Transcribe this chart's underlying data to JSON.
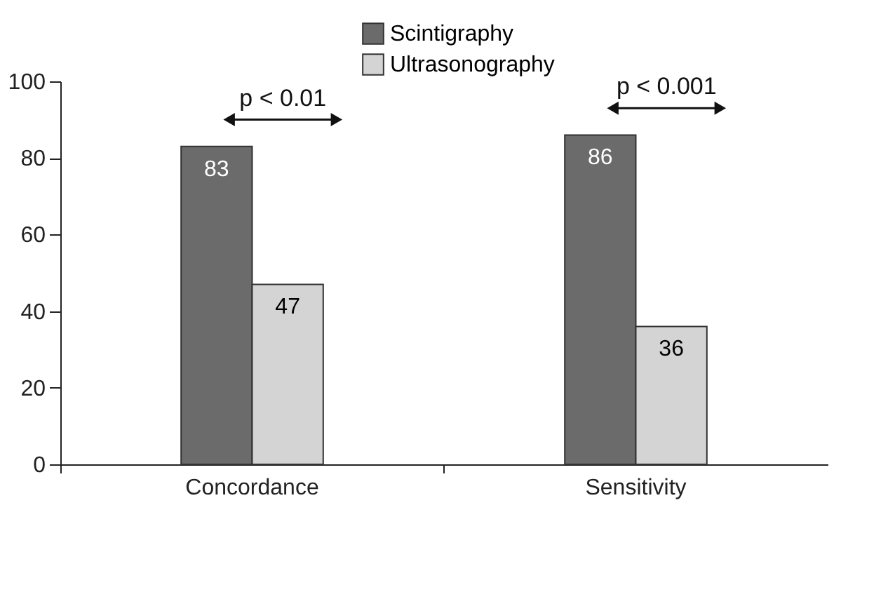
{
  "chart_data": {
    "type": "bar",
    "categories": [
      "Concordance",
      "Sensitivity"
    ],
    "series": [
      {
        "name": "Scintigraphy",
        "color": "#6b6b6b",
        "values": [
          83,
          86
        ]
      },
      {
        "name": "Ultrasonography",
        "color": "#d4d4d4",
        "values": [
          47,
          36
        ]
      }
    ],
    "ylim": [
      0,
      100
    ],
    "yticks": [
      0,
      20,
      40,
      60,
      80,
      100
    ],
    "grid": false,
    "legend": "top",
    "data_labels": true,
    "annotations": [
      "p < 0.01",
      "p < 0.001"
    ]
  }
}
